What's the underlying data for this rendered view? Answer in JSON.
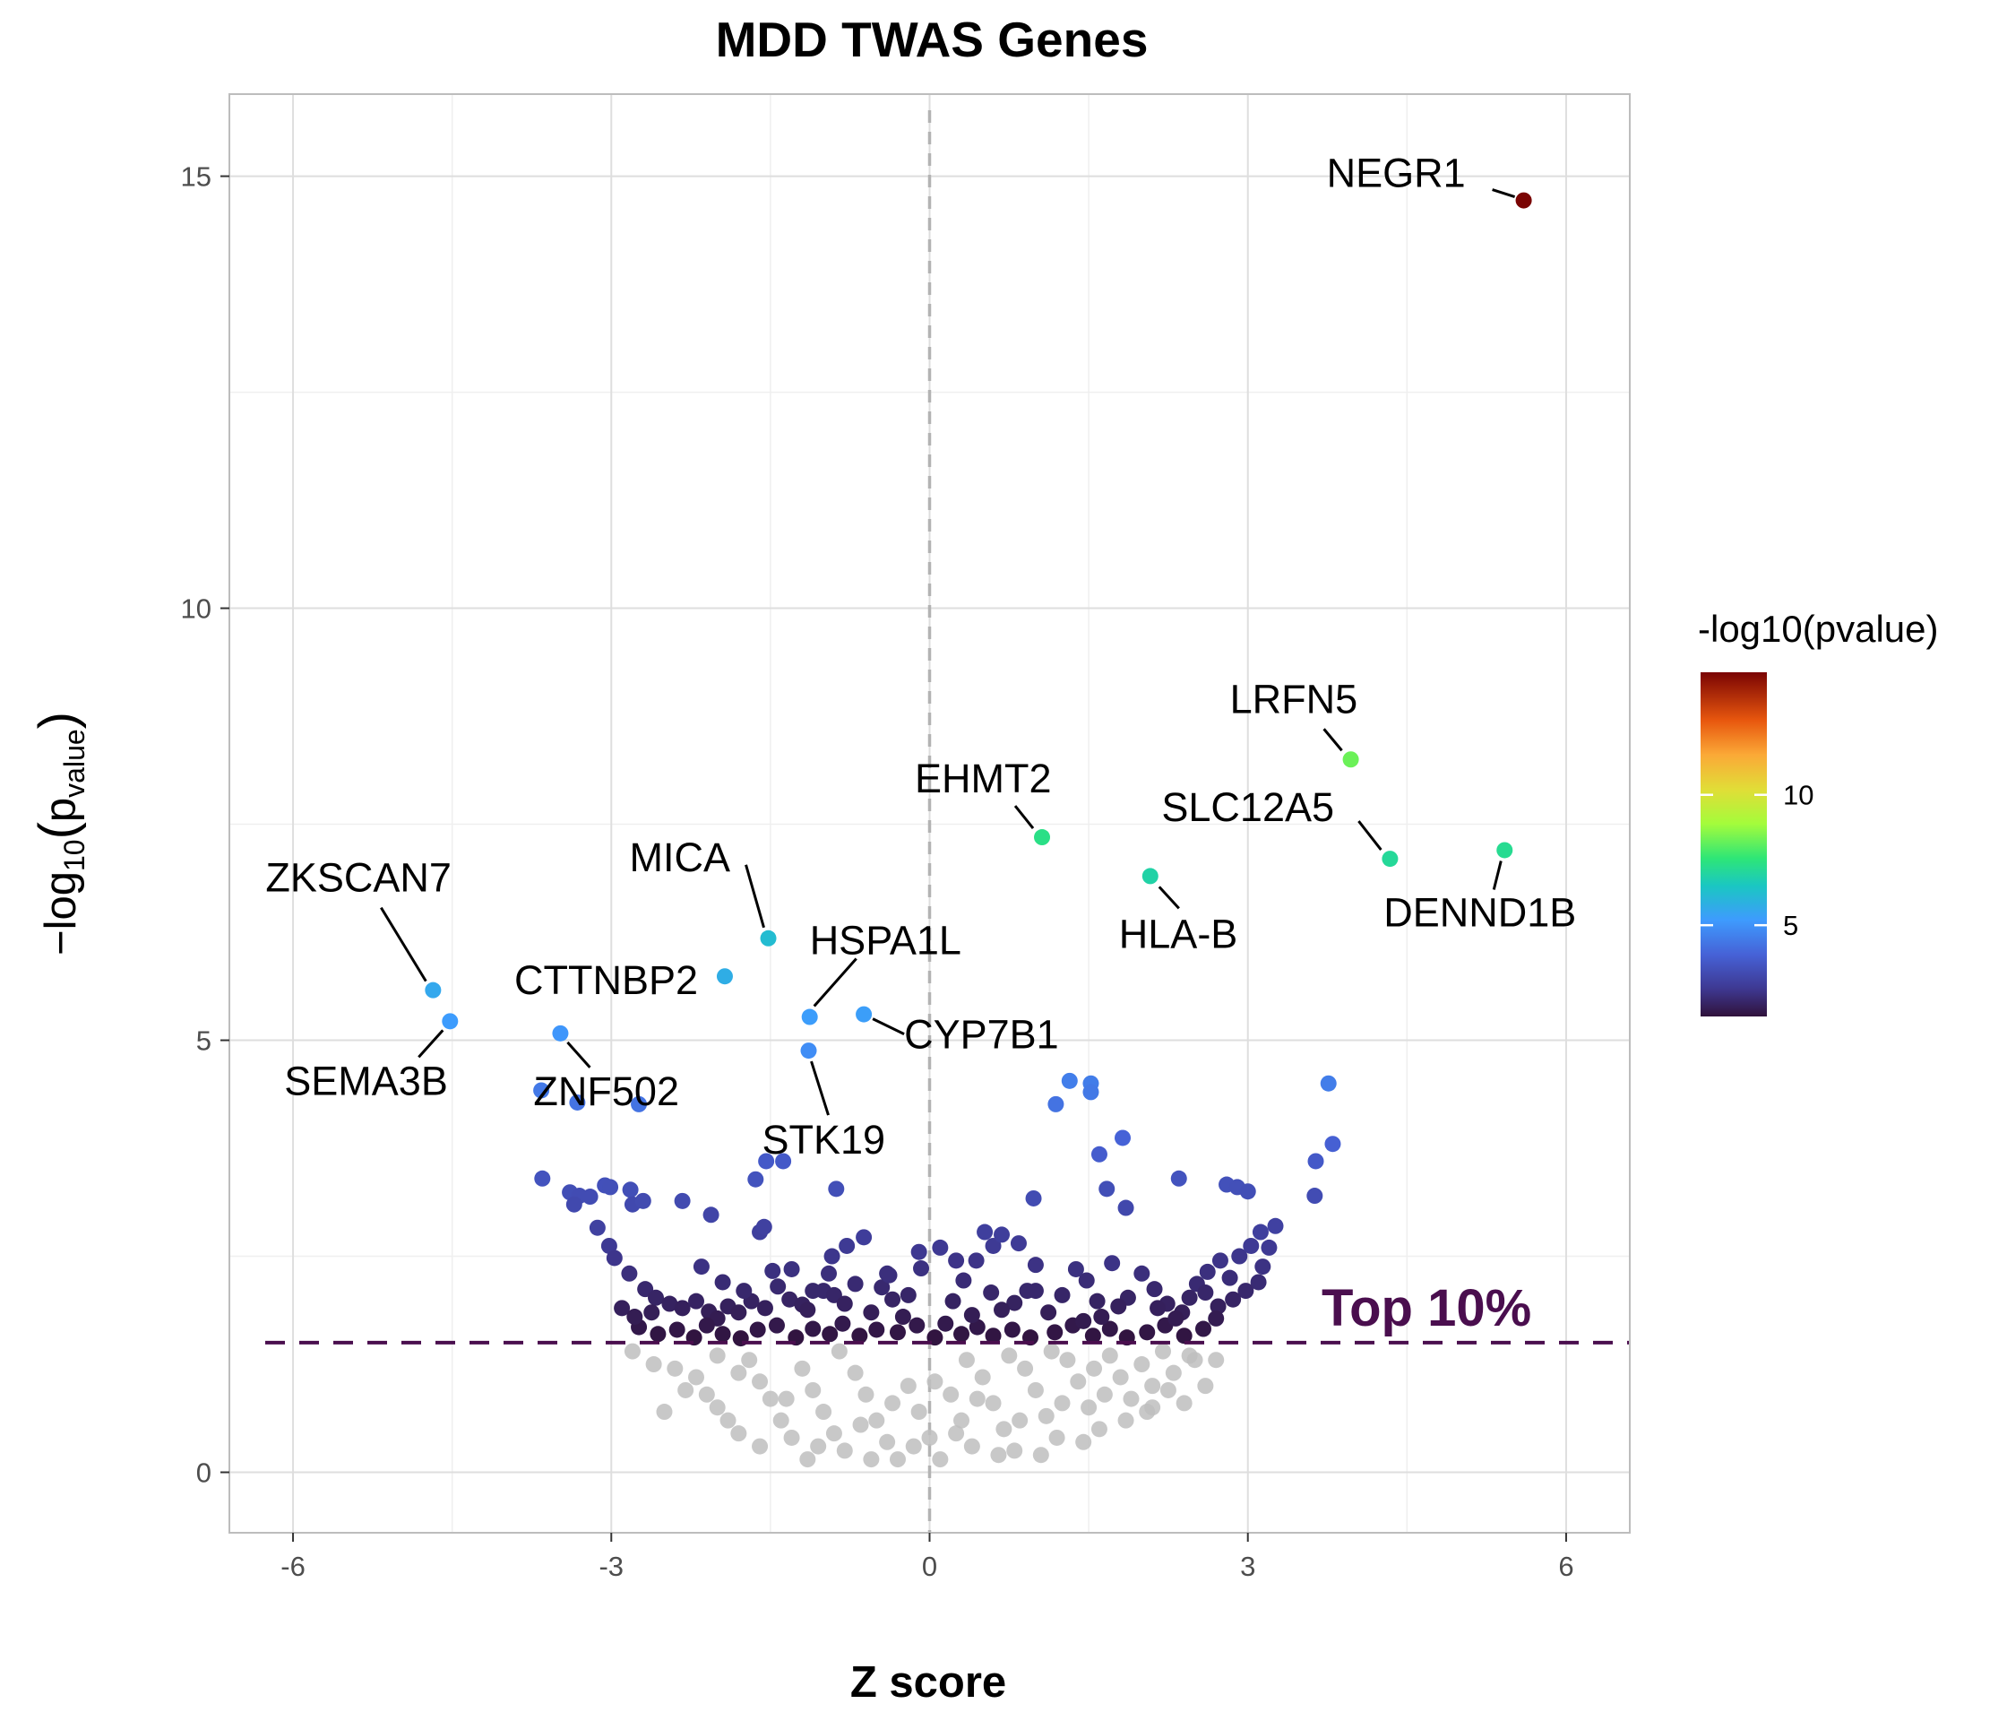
{
  "chart_data": {
    "type": "scatter",
    "title": "MDD TWAS Genes",
    "xlabel": "Z score",
    "ylabel_prefix": "−log",
    "ylabel_sub": "10",
    "ylabel_p": "p",
    "ylabel_value_sub": "value",
    "xlim": [
      -6.6,
      6.6
    ],
    "ylim": [
      -0.7,
      15.95
    ],
    "x_ticks": [
      -6,
      -3,
      0,
      3,
      6
    ],
    "x_tick_labels": [
      "-6",
      "-3",
      "0",
      "3",
      "6"
    ],
    "y_ticks": [
      0,
      5,
      10,
      15
    ],
    "y_tick_labels": [
      "0",
      "5",
      "10",
      "15"
    ],
    "grid": true,
    "vline_x": 0,
    "threshold_y": 1.5,
    "threshold_label": "Top 10%",
    "threshold_color": "#4a0e4e",
    "legend": {
      "title": "-log10(pvalue)",
      "position": "right",
      "min": 1.5,
      "max": 14.7,
      "ticks": [
        5,
        10
      ],
      "tick_labels": [
        "5",
        "10"
      ]
    },
    "colors": {
      "background_points": "#bebebe",
      "vline": "#b3b3b3",
      "grid_major": "#dedede",
      "grid_minor": "#efefef",
      "panel_border": "#bdbdbd"
    },
    "labeled_genes": [
      {
        "label": "NEGR1",
        "x": 5.6,
        "y": 14.72
      },
      {
        "label": "LRFN5",
        "x": 3.97,
        "y": 8.25
      },
      {
        "label": "SLC12A5",
        "x": 4.34,
        "y": 7.1
      },
      {
        "label": "DENND1B",
        "x": 5.42,
        "y": 7.2
      },
      {
        "label": "EHMT2",
        "x": 1.06,
        "y": 7.35
      },
      {
        "label": "HLA-B",
        "x": 2.08,
        "y": 6.9
      },
      {
        "label": "MICA",
        "x": -1.52,
        "y": 6.18
      },
      {
        "label": "HSPA1L",
        "x": -1.13,
        "y": 5.27
      },
      {
        "label": "CYP7B1",
        "x": -0.62,
        "y": 5.3
      },
      {
        "label": "STK19",
        "x": -1.14,
        "y": 4.88
      },
      {
        "label": "CTTNBP2",
        "x": -1.93,
        "y": 5.74
      },
      {
        "label": "ZNF502",
        "x": -3.48,
        "y": 5.08
      },
      {
        "label": "ZKSCAN7",
        "x": -4.68,
        "y": 5.58
      },
      {
        "label": "SEMA3B",
        "x": -4.52,
        "y": 5.22
      }
    ],
    "significant_points": [
      [
        -3.66,
        4.42
      ],
      [
        -3.32,
        4.28
      ],
      [
        -2.74,
        4.26
      ],
      [
        1.32,
        4.53
      ],
      [
        1.52,
        4.5
      ],
      [
        1.52,
        4.4
      ],
      [
        1.19,
        4.26
      ],
      [
        3.76,
        4.5
      ],
      [
        3.8,
        3.8
      ],
      [
        1.6,
        3.68
      ],
      [
        1.82,
        3.87
      ],
      [
        3.64,
        3.6
      ],
      [
        3.63,
        3.2
      ],
      [
        -3.65,
        3.4
      ],
      [
        -3.39,
        3.24
      ],
      [
        -3.3,
        3.2
      ],
      [
        -3.35,
        3.1
      ],
      [
        -3.2,
        3.19
      ],
      [
        -3.06,
        3.32
      ],
      [
        -3.01,
        3.3
      ],
      [
        -2.82,
        3.27
      ],
      [
        -2.8,
        3.1
      ],
      [
        -2.7,
        3.14
      ],
      [
        -2.33,
        3.14
      ],
      [
        -2.06,
        2.98
      ],
      [
        -1.64,
        3.39
      ],
      [
        -1.54,
        3.6
      ],
      [
        -1.38,
        3.6
      ],
      [
        -0.88,
        3.28
      ],
      [
        -1.6,
        2.78
      ],
      [
        -1.56,
        2.84
      ],
      [
        0.98,
        3.17
      ],
      [
        1.67,
        3.28
      ],
      [
        1.85,
        3.06
      ],
      [
        2.35,
        3.4
      ],
      [
        2.8,
        3.33
      ],
      [
        2.9,
        3.3
      ],
      [
        3.0,
        3.25
      ],
      [
        -3.13,
        2.83
      ],
      [
        -3.02,
        2.62
      ],
      [
        -2.97,
        2.48
      ],
      [
        -2.83,
        2.3
      ],
      [
        -2.68,
        2.12
      ],
      [
        -2.58,
        2.02
      ],
      [
        -2.45,
        1.95
      ],
      [
        -2.33,
        1.9
      ],
      [
        -2.2,
        1.98
      ],
      [
        -2.08,
        1.86
      ],
      [
        -2.0,
        1.78
      ],
      [
        -1.9,
        1.92
      ],
      [
        -1.8,
        1.85
      ],
      [
        -1.68,
        1.98
      ],
      [
        -1.55,
        1.9
      ],
      [
        -1.48,
        2.33
      ],
      [
        -1.43,
        2.15
      ],
      [
        -1.32,
        2.0
      ],
      [
        -1.2,
        1.94
      ],
      [
        -1.1,
        2.1
      ],
      [
        -1.0,
        2.1
      ],
      [
        -0.9,
        2.05
      ],
      [
        -0.8,
        1.95
      ],
      [
        -0.7,
        2.18
      ],
      [
        -0.62,
        2.72
      ],
      [
        -0.45,
        2.14
      ],
      [
        -0.38,
        2.28
      ],
      [
        -0.2,
        2.05
      ],
      [
        -0.08,
        2.36
      ],
      [
        0.1,
        2.6
      ],
      [
        0.22,
        1.98
      ],
      [
        0.32,
        2.22
      ],
      [
        0.44,
        2.45
      ],
      [
        0.52,
        2.78
      ],
      [
        0.6,
        2.62
      ],
      [
        0.8,
        1.96
      ],
      [
        0.92,
        2.1
      ],
      [
        1.0,
        2.1
      ],
      [
        1.12,
        1.85
      ],
      [
        1.25,
        2.05
      ],
      [
        1.38,
        2.35
      ],
      [
        1.48,
        2.22
      ],
      [
        1.58,
        1.98
      ],
      [
        1.72,
        2.42
      ],
      [
        1.87,
        2.02
      ],
      [
        2.0,
        2.3
      ],
      [
        2.12,
        2.12
      ],
      [
        2.24,
        1.95
      ],
      [
        2.38,
        1.85
      ],
      [
        2.52,
        2.18
      ],
      [
        2.62,
        2.32
      ],
      [
        2.74,
        2.45
      ],
      [
        2.83,
        2.25
      ],
      [
        2.92,
        2.5
      ],
      [
        3.03,
        2.62
      ],
      [
        3.12,
        2.78
      ],
      [
        3.26,
        2.85
      ],
      [
        3.2,
        2.6
      ],
      [
        3.14,
        2.38
      ],
      [
        3.1,
        2.2
      ],
      [
        2.98,
        2.1
      ],
      [
        2.72,
        1.92
      ],
      [
        -0.92,
        2.5
      ],
      [
        -0.78,
        2.62
      ],
      [
        -0.4,
        2.3
      ],
      [
        -0.1,
        2.55
      ],
      [
        0.25,
        2.45
      ],
      [
        0.68,
        2.75
      ],
      [
        0.84,
        2.65
      ],
      [
        1.0,
        2.4
      ],
      [
        -0.35,
        2.0
      ],
      [
        0.15,
        1.72
      ],
      [
        -0.5,
        1.65
      ],
      [
        0.45,
        1.68
      ],
      [
        -2.74,
        1.68
      ],
      [
        -2.56,
        1.6
      ],
      [
        -2.38,
        1.65
      ],
      [
        -2.22,
        1.56
      ],
      [
        -2.1,
        1.7
      ],
      [
        -1.95,
        1.6
      ],
      [
        -1.78,
        1.55
      ],
      [
        -1.62,
        1.65
      ],
      [
        -1.44,
        1.7
      ],
      [
        -1.26,
        1.56
      ],
      [
        -1.1,
        1.66
      ],
      [
        -0.94,
        1.6
      ],
      [
        -0.82,
        1.72
      ],
      [
        -0.66,
        1.58
      ],
      [
        -0.3,
        1.62
      ],
      [
        -0.12,
        1.7
      ],
      [
        0.05,
        1.56
      ],
      [
        0.3,
        1.6
      ],
      [
        0.6,
        1.58
      ],
      [
        0.78,
        1.65
      ],
      [
        0.95,
        1.56
      ],
      [
        1.18,
        1.62
      ],
      [
        1.35,
        1.7
      ],
      [
        1.54,
        1.58
      ],
      [
        1.7,
        1.66
      ],
      [
        1.86,
        1.56
      ],
      [
        2.05,
        1.62
      ],
      [
        2.22,
        1.7
      ],
      [
        2.4,
        1.58
      ],
      [
        2.58,
        1.66
      ],
      [
        2.7,
        1.78
      ],
      [
        -2.9,
        1.9
      ],
      [
        -2.78,
        1.8
      ],
      [
        -2.62,
        1.85
      ],
      [
        -1.3,
        2.35
      ],
      [
        -1.15,
        1.88
      ],
      [
        -0.55,
        1.85
      ],
      [
        -0.25,
        1.8
      ],
      [
        0.4,
        1.82
      ],
      [
        0.68,
        1.88
      ],
      [
        1.62,
        1.8
      ],
      [
        1.78,
        1.92
      ],
      [
        2.15,
        1.9
      ],
      [
        2.45,
        2.02
      ],
      [
        2.32,
        1.78
      ],
      [
        -2.15,
        2.38
      ],
      [
        -1.95,
        2.2
      ],
      [
        -1.75,
        2.1
      ],
      [
        2.6,
        2.08
      ],
      [
        2.86,
        2.0
      ],
      [
        -0.95,
        2.3
      ],
      [
        0.58,
        2.08
      ],
      [
        1.45,
        1.75
      ]
    ],
    "background_points": [
      [
        -2.8,
        1.4
      ],
      [
        -2.6,
        1.25
      ],
      [
        -2.4,
        1.2
      ],
      [
        -2.2,
        1.1
      ],
      [
        -2.1,
        0.9
      ],
      [
        -2.0,
        0.75
      ],
      [
        -1.9,
        0.6
      ],
      [
        -1.8,
        0.45
      ],
      [
        -1.7,
        1.3
      ],
      [
        -1.6,
        1.05
      ],
      [
        -1.5,
        0.85
      ],
      [
        -1.4,
        0.6
      ],
      [
        -1.3,
        0.4
      ],
      [
        -1.2,
        1.2
      ],
      [
        -1.1,
        0.95
      ],
      [
        -1.0,
        0.7
      ],
      [
        -0.9,
        0.45
      ],
      [
        -0.8,
        0.25
      ],
      [
        -0.7,
        1.15
      ],
      [
        -0.6,
        0.9
      ],
      [
        -0.5,
        0.6
      ],
      [
        -0.4,
        0.35
      ],
      [
        -0.3,
        0.15
      ],
      [
        -0.2,
        1.0
      ],
      [
        -0.1,
        0.7
      ],
      [
        0.0,
        0.4
      ],
      [
        0.1,
        0.15
      ],
      [
        0.2,
        0.9
      ],
      [
        0.3,
        0.6
      ],
      [
        0.4,
        0.3
      ],
      [
        0.5,
        1.1
      ],
      [
        0.6,
        0.8
      ],
      [
        0.7,
        0.5
      ],
      [
        0.8,
        0.25
      ],
      [
        0.9,
        1.2
      ],
      [
        1.0,
        0.95
      ],
      [
        1.1,
        0.65
      ],
      [
        1.2,
        0.4
      ],
      [
        1.3,
        1.3
      ],
      [
        1.4,
        1.05
      ],
      [
        1.5,
        0.75
      ],
      [
        1.6,
        0.5
      ],
      [
        1.7,
        1.35
      ],
      [
        1.8,
        1.1
      ],
      [
        1.9,
        0.85
      ],
      [
        2.0,
        1.25
      ],
      [
        2.1,
        1.0
      ],
      [
        2.2,
        1.4
      ],
      [
        2.3,
        1.15
      ],
      [
        2.4,
        0.8
      ],
      [
        2.5,
        1.3
      ],
      [
        2.6,
        1.0
      ],
      [
        -2.3,
        0.95
      ],
      [
        -2.0,
        1.35
      ],
      [
        -1.8,
        1.15
      ],
      [
        -1.6,
        0.3
      ],
      [
        -1.35,
        0.85
      ],
      [
        -1.05,
        0.3
      ],
      [
        -0.85,
        1.4
      ],
      [
        -0.55,
        0.15
      ],
      [
        -0.35,
        0.8
      ],
      [
        -0.15,
        0.3
      ],
      [
        0.05,
        1.05
      ],
      [
        0.25,
        0.45
      ],
      [
        0.45,
        0.85
      ],
      [
        0.65,
        0.2
      ],
      [
        0.85,
        0.6
      ],
      [
        1.05,
        0.2
      ],
      [
        1.25,
        0.8
      ],
      [
        1.45,
        0.35
      ],
      [
        1.65,
        0.9
      ],
      [
        1.85,
        0.6
      ],
      [
        2.05,
        0.7
      ],
      [
        2.25,
        0.95
      ],
      [
        2.45,
        1.35
      ],
      [
        -2.5,
        0.7
      ],
      [
        -1.15,
        0.15
      ],
      [
        -0.65,
        0.55
      ],
      [
        0.35,
        1.3
      ],
      [
        0.75,
        1.35
      ],
      [
        1.15,
        1.4
      ],
      [
        1.55,
        1.2
      ],
      [
        2.7,
        1.3
      ],
      [
        2.1,
        0.75
      ]
    ]
  }
}
